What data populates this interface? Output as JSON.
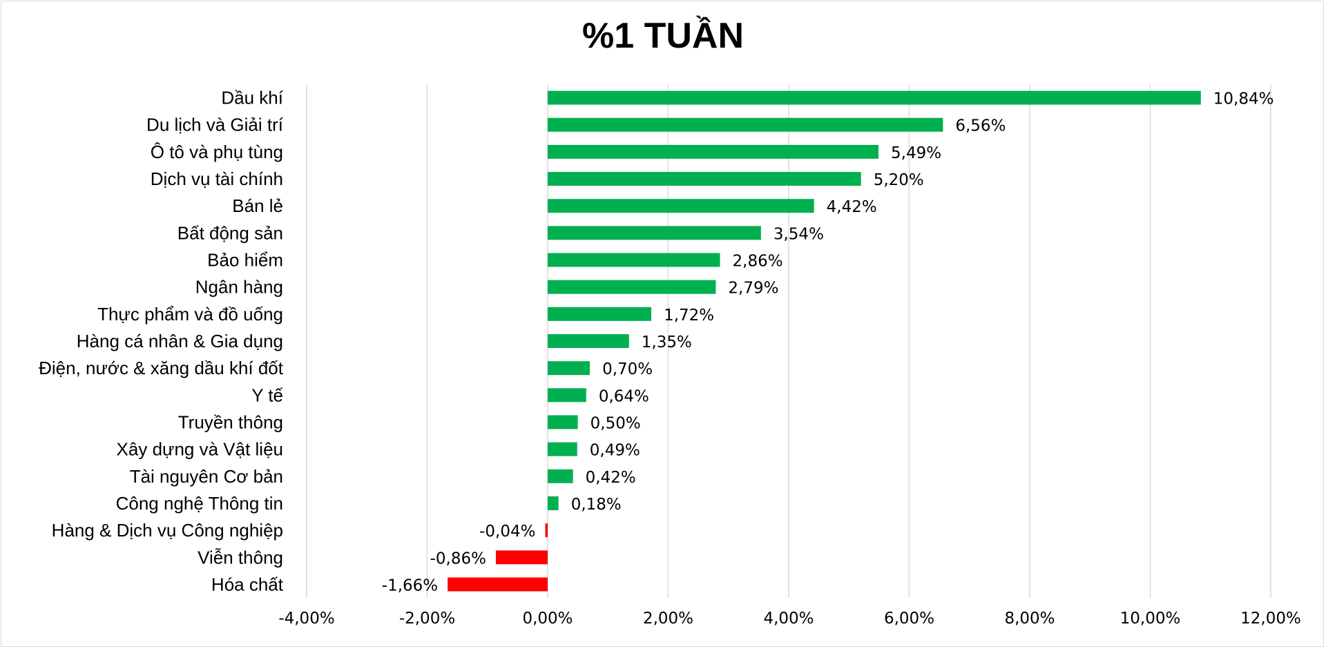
{
  "chart_data": {
    "type": "bar",
    "orientation": "horizontal",
    "title": "%1 TUẦN",
    "xlim": [
      -4,
      12
    ],
    "x_ticks": [
      -4,
      -2,
      0,
      2,
      4,
      6,
      8,
      10,
      12
    ],
    "x_tick_labels": [
      "-4,00%",
      "-2,00%",
      "0,00%",
      "2,00%",
      "4,00%",
      "6,00%",
      "8,00%",
      "10,00%",
      "12,00%"
    ],
    "grid": "vertical",
    "colors": {
      "positive": "#00b050",
      "negative": "#ff0000",
      "grid": "#d9d9d9"
    },
    "categories": [
      "Dầu khí",
      "Du lịch và Giải trí",
      "Ô tô và phụ tùng",
      "Dịch vụ tài chính",
      "Bán lẻ",
      "Bất động sản",
      "Bảo hiểm",
      "Ngân hàng",
      "Thực phẩm và đồ uống",
      "Hàng cá nhân & Gia dụng",
      "Điện, nước & xăng dầu khí đốt",
      "Y tế",
      "Truyền thông",
      "Xây dựng và Vật liệu",
      "Tài nguyên Cơ bản",
      "Công nghệ Thông tin",
      "Hàng & Dịch vụ Công nghiệp",
      "Viễn thông",
      "Hóa chất"
    ],
    "values": [
      10.84,
      6.56,
      5.49,
      5.2,
      4.42,
      3.54,
      2.86,
      2.79,
      1.72,
      1.35,
      0.7,
      0.64,
      0.5,
      0.49,
      0.42,
      0.18,
      -0.04,
      -0.86,
      -1.66
    ],
    "value_labels": [
      "10,84%",
      "6,56%",
      "5,49%",
      "5,20%",
      "4,42%",
      "3,54%",
      "2,86%",
      "2,79%",
      "1,72%",
      "1,35%",
      "0,70%",
      "0,64%",
      "0,50%",
      "0,49%",
      "0,42%",
      "0,18%",
      "-0,04%",
      "-0,86%",
      "-1,66%"
    ]
  }
}
